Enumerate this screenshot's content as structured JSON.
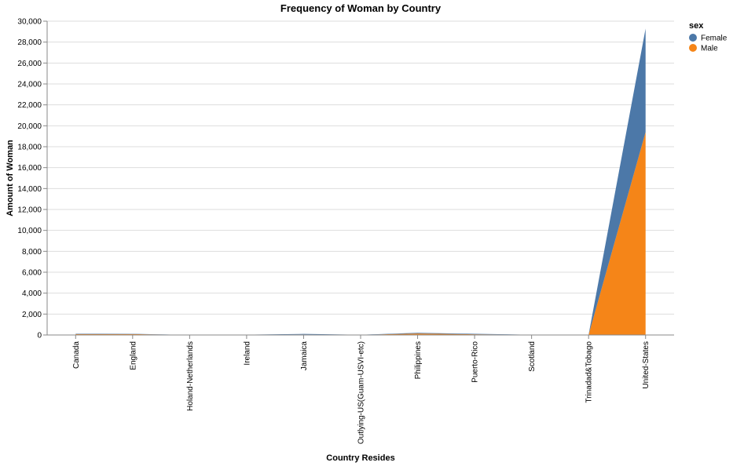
{
  "chart_data": {
    "type": "area",
    "stacked": true,
    "title": "Frequency of Woman by Country",
    "xlabel": "Country Resides",
    "ylabel": "Amount of Woman",
    "ylim": [
      0,
      30000
    ],
    "yticks": [
      0,
      2000,
      4000,
      6000,
      8000,
      10000,
      12000,
      14000,
      16000,
      18000,
      20000,
      22000,
      24000,
      26000,
      28000,
      30000
    ],
    "grid": true,
    "legend_position": "top-right",
    "legend_title": "sex",
    "categories": [
      "Canada",
      "England",
      "Holand-Netherlands",
      "Ireland",
      "Jamaica",
      "Outlying-US(Guam-USVI-etc)",
      "Philippines",
      "Puerto-Rico",
      "Scotland",
      "Trinadad&Tobago",
      "United-States"
    ],
    "series": [
      {
        "name": "Male",
        "color": "#f58518",
        "values": [
          80,
          80,
          1,
          15,
          45,
          10,
          140,
          70,
          10,
          10,
          19400
        ]
      },
      {
        "name": "Female",
        "color": "#4c78a8",
        "values": [
          40,
          35,
          1,
          10,
          55,
          10,
          70,
          45,
          5,
          8,
          9900
        ]
      }
    ]
  }
}
